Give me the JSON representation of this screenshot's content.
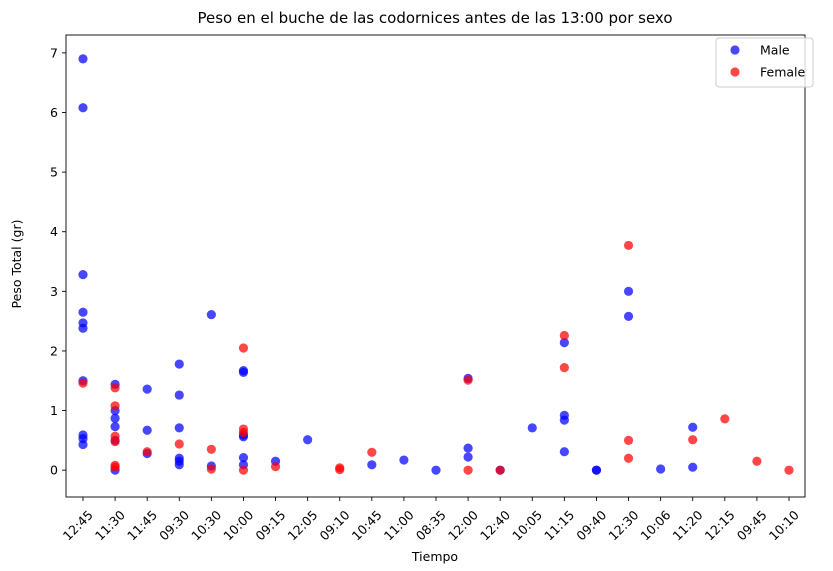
{
  "chart_data": {
    "type": "scatter",
    "title": "Peso en el buche de las codornices antes de las 13:00 por sexo",
    "xlabel": "Tiempo",
    "ylabel": "Peso Total (gr)",
    "categories": [
      "12:45",
      "11:30",
      "11:45",
      "09:30",
      "10:30",
      "10:00",
      "09:15",
      "12:05",
      "09:10",
      "10:45",
      "11:00",
      "08:35",
      "12:00",
      "12:40",
      "10:05",
      "11:15",
      "09:40",
      "12:30",
      "10:06",
      "11:20",
      "12:15",
      "09:45",
      "10:10"
    ],
    "yticks": [
      0,
      1,
      2,
      3,
      4,
      5,
      6,
      7
    ],
    "ylim": [
      -0.45,
      7.3
    ],
    "legend_position": "top-right",
    "series": [
      {
        "name": "Male",
        "color": "#0000ff",
        "points": [
          [
            "12:45",
            6.9
          ],
          [
            "12:45",
            6.08
          ],
          [
            "12:45",
            3.28
          ],
          [
            "12:45",
            2.65
          ],
          [
            "12:45",
            2.47
          ],
          [
            "12:45",
            2.38
          ],
          [
            "12:45",
            1.5
          ],
          [
            "12:45",
            0.59
          ],
          [
            "12:45",
            0.53
          ],
          [
            "12:45",
            0.43
          ],
          [
            "11:30",
            1.44
          ],
          [
            "11:30",
            1.0
          ],
          [
            "11:30",
            0.87
          ],
          [
            "11:30",
            0.73
          ],
          [
            "11:30",
            0.5
          ],
          [
            "11:30",
            0.0
          ],
          [
            "11:45",
            1.36
          ],
          [
            "11:45",
            0.67
          ],
          [
            "11:45",
            0.28
          ],
          [
            "09:30",
            1.78
          ],
          [
            "09:30",
            1.26
          ],
          [
            "09:30",
            0.71
          ],
          [
            "09:30",
            0.2
          ],
          [
            "09:30",
            0.15
          ],
          [
            "09:30",
            0.09
          ],
          [
            "10:30",
            2.61
          ],
          [
            "10:30",
            0.07
          ],
          [
            "10:00",
            1.67
          ],
          [
            "10:00",
            1.64
          ],
          [
            "10:00",
            0.59
          ],
          [
            "10:00",
            0.56
          ],
          [
            "10:00",
            0.21
          ],
          [
            "10:00",
            0.09
          ],
          [
            "09:15",
            0.15
          ],
          [
            "12:05",
            0.51
          ],
          [
            "10:45",
            0.09
          ],
          [
            "11:00",
            0.17
          ],
          [
            "08:35",
            0.0
          ],
          [
            "12:00",
            1.54
          ],
          [
            "12:00",
            0.37
          ],
          [
            "12:00",
            0.22
          ],
          [
            "12:40",
            0.0
          ],
          [
            "10:05",
            0.71
          ],
          [
            "11:15",
            2.14
          ],
          [
            "11:15",
            0.92
          ],
          [
            "11:15",
            0.84
          ],
          [
            "11:15",
            0.31
          ],
          [
            "09:40",
            0.0
          ],
          [
            "09:40",
            0.0
          ],
          [
            "12:30",
            3.0
          ],
          [
            "12:30",
            2.58
          ],
          [
            "10:06",
            0.02
          ],
          [
            "11:20",
            0.72
          ],
          [
            "11:20",
            0.05
          ]
        ]
      },
      {
        "name": "Female",
        "color": "#ff0000",
        "points": [
          [
            "12:45",
            1.46
          ],
          [
            "11:30",
            1.38
          ],
          [
            "11:30",
            1.08
          ],
          [
            "11:30",
            0.57
          ],
          [
            "11:30",
            0.48
          ],
          [
            "11:30",
            0.08
          ],
          [
            "11:30",
            0.05
          ],
          [
            "11:45",
            0.31
          ],
          [
            "09:30",
            0.44
          ],
          [
            "10:30",
            0.35
          ],
          [
            "10:30",
            0.02
          ],
          [
            "10:00",
            2.05
          ],
          [
            "10:00",
            0.69
          ],
          [
            "10:00",
            0.63
          ],
          [
            "10:00",
            0.0
          ],
          [
            "09:15",
            0.06
          ],
          [
            "09:10",
            0.04
          ],
          [
            "09:10",
            0.01
          ],
          [
            "10:45",
            0.3
          ],
          [
            "12:00",
            1.51
          ],
          [
            "12:00",
            0.0
          ],
          [
            "12:40",
            0.0
          ],
          [
            "11:15",
            2.26
          ],
          [
            "11:15",
            1.72
          ],
          [
            "12:30",
            3.77
          ],
          [
            "12:30",
            0.5
          ],
          [
            "12:30",
            0.2
          ],
          [
            "11:20",
            0.51
          ],
          [
            "12:15",
            0.86
          ],
          [
            "09:45",
            0.15
          ],
          [
            "10:10",
            0.0
          ]
        ]
      }
    ]
  }
}
